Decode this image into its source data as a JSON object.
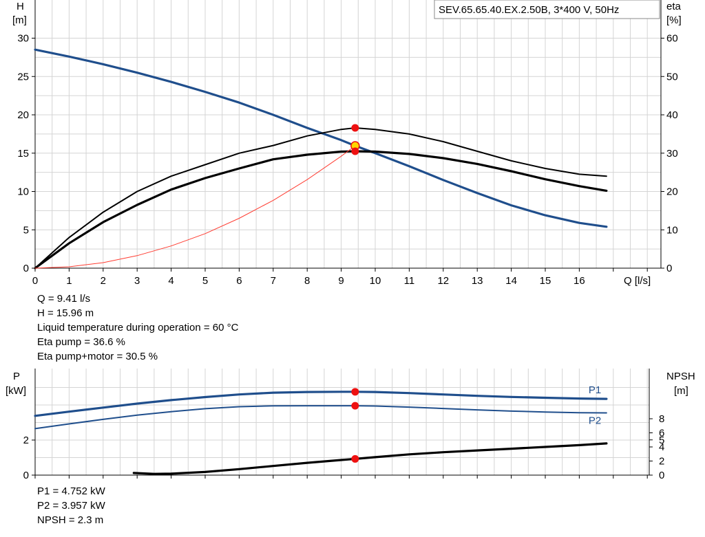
{
  "chart_data": [
    {
      "type": "line",
      "title": "SEV.65.65.40.EX.2.50B, 3*400 V, 50Hz",
      "xlabel": "Q [l/s]",
      "ylabel_left": [
        "H",
        "[m]"
      ],
      "ylabel_right": [
        "eta",
        "[%]"
      ],
      "xlim": [
        0,
        18
      ],
      "ylim_left": [
        0,
        31
      ],
      "ylim_right": [
        0,
        62
      ],
      "x_ticks": [
        "0",
        "1",
        "2",
        "3",
        "4",
        "5",
        "6",
        "7",
        "8",
        "9",
        "10",
        "11",
        "12",
        "13",
        "14",
        "15",
        "16"
      ],
      "y_ticks_left": [
        "0",
        "5",
        "10",
        "15",
        "20",
        "25",
        "30"
      ],
      "y_ticks_right": [
        "0",
        "10",
        "20",
        "30",
        "40",
        "50",
        "60"
      ],
      "grid": true,
      "series": [
        {
          "axis": "left",
          "color": "#1f4e8c",
          "x": [
            0,
            1,
            2,
            3,
            4,
            5,
            6,
            7,
            8,
            9,
            9.41,
            10,
            11,
            12,
            13,
            14,
            15,
            16,
            16.8
          ],
          "y": [
            28.5,
            27.6,
            26.6,
            25.5,
            24.3,
            23.0,
            21.6,
            20.0,
            18.3,
            16.7,
            15.96,
            15.0,
            13.3,
            11.5,
            9.8,
            8.2,
            6.9,
            5.9,
            5.4
          ]
        },
        {
          "axis": "right",
          "color": "#000000",
          "x": [
            0,
            1,
            2,
            3,
            4,
            5,
            6,
            7,
            8,
            9,
            9.41,
            10,
            11,
            12,
            13,
            14,
            15,
            16,
            16.8
          ],
          "y": [
            0,
            8,
            14.6,
            20,
            24,
            27,
            30,
            32,
            34.5,
            36.2,
            36.6,
            36.2,
            35,
            33,
            30.5,
            28,
            26,
            24.5,
            24
          ]
        },
        {
          "axis": "right",
          "color": "#000000",
          "x": [
            0,
            1,
            2,
            3,
            4,
            5,
            6,
            7,
            8,
            9,
            9.41,
            10,
            11,
            12,
            13,
            14,
            15,
            16,
            16.8
          ],
          "y": [
            0,
            6.5,
            12,
            16.5,
            20.5,
            23.5,
            26,
            28.4,
            29.6,
            30.4,
            30.5,
            30.4,
            29.8,
            28.7,
            27.2,
            25.3,
            23.2,
            21.4,
            20.2
          ]
        },
        {
          "axis": "left",
          "color": "#ff3b30",
          "x": [
            0,
            1,
            2,
            3,
            4,
            5,
            6,
            7,
            8,
            9,
            9.41
          ],
          "y": [
            0,
            0.18,
            0.72,
            1.63,
            2.9,
            4.5,
            6.5,
            8.84,
            11.55,
            14.6,
            15.96
          ]
        }
      ],
      "markers": [
        {
          "x": 9.41,
          "y": 18.3,
          "color": "#ee1111"
        },
        {
          "x": 9.41,
          "y": 15.96,
          "color": "#ffd700"
        },
        {
          "x": 9.41,
          "y": 15.25,
          "color": "#ee1111"
        }
      ]
    },
    {
      "type": "line",
      "ylabel_left": [
        "P",
        "[kW]"
      ],
      "ylabel_right": [
        "NPSH",
        "[m]"
      ],
      "xlim": [
        0,
        18
      ],
      "ylim_left": [
        0,
        5.2
      ],
      "ylim_right": [
        0,
        20
      ],
      "y_ticks_left": [
        "0",
        "2"
      ],
      "y_ticks_right": [
        "0",
        "2",
        "4",
        "5",
        "6",
        "8"
      ],
      "grid": true,
      "series": [
        {
          "name": "P1",
          "axis": "left",
          "color": "#1f4e8c",
          "x": [
            0,
            1,
            2,
            3,
            4,
            5,
            6,
            7,
            8,
            9,
            9.41,
            10,
            11,
            12,
            13,
            14,
            15,
            16,
            16.8
          ],
          "y": [
            3.38,
            3.62,
            3.85,
            4.08,
            4.28,
            4.45,
            4.6,
            4.7,
            4.74,
            4.752,
            4.752,
            4.74,
            4.68,
            4.6,
            4.52,
            4.46,
            4.41,
            4.37,
            4.35
          ]
        },
        {
          "name": "P2",
          "axis": "left",
          "color": "#1f4e8c",
          "x": [
            0,
            1,
            2,
            3,
            4,
            5,
            6,
            7,
            8,
            9,
            9.41,
            10,
            11,
            12,
            13,
            14,
            15,
            16,
            16.8
          ],
          "y": [
            2.65,
            2.92,
            3.18,
            3.42,
            3.62,
            3.79,
            3.9,
            3.95,
            3.957,
            3.957,
            3.957,
            3.94,
            3.88,
            3.8,
            3.72,
            3.65,
            3.6,
            3.56,
            3.55
          ]
        },
        {
          "axis": "right",
          "color": "#000000",
          "x": [
            2.9,
            3.5,
            4,
            5,
            6,
            7,
            8,
            9,
            9.41,
            10,
            11,
            12,
            13,
            14,
            15,
            16,
            16.8
          ],
          "y": [
            0.3,
            0.18,
            0.2,
            0.45,
            0.85,
            1.3,
            1.75,
            2.15,
            2.3,
            2.55,
            2.95,
            3.25,
            3.5,
            3.75,
            4.0,
            4.25,
            4.5
          ]
        }
      ],
      "markers": [
        {
          "x": 9.41,
          "y": 4.752,
          "axis": "left",
          "color": "#ee1111"
        },
        {
          "x": 9.41,
          "y": 3.957,
          "axis": "left",
          "color": "#ee1111"
        },
        {
          "x": 9.41,
          "y": 2.3,
          "axis": "right",
          "color": "#ee1111"
        }
      ]
    }
  ],
  "info_top": [
    "Q = 9.41 l/s",
    "H = 15.96 m",
    "Liquid temperature during operation = 60 °C",
    "Eta pump = 36.6 %",
    "Eta pump+motor = 30.5 %"
  ],
  "info_bottom": [
    "P1 = 4.752 kW",
    "P2 = 3.957 kW",
    "NPSH = 2.3 m"
  ]
}
